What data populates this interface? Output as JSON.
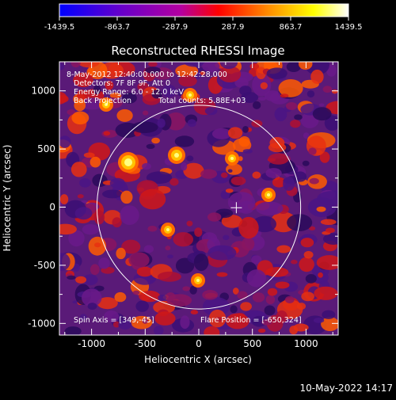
{
  "colorbar": {
    "tick_labels": [
      "-1439.5",
      "-863.7",
      "-287.9",
      "287.9",
      "863.7",
      "1439.5"
    ],
    "range": [
      -1439.5,
      1439.5
    ],
    "colors": [
      "#0000ff",
      "#6a00c8",
      "#b400a0",
      "#ff0000",
      "#ff8a00",
      "#ffff00",
      "#ffffff"
    ]
  },
  "chart_data": {
    "type": "heatmap",
    "title": "Reconstructed RHESSI Image",
    "xlabel": "Heliocentric X (arcsec)",
    "ylabel": "Heliocentric Y (arcsec)",
    "xlim": [
      -1300,
      1300
    ],
    "ylim": [
      -1100,
      1250
    ],
    "x_ticks": [
      "-1000",
      "-500",
      "0",
      "500",
      "1000"
    ],
    "y_ticks": [
      "-1000",
      "-500",
      "0",
      "500",
      "1000"
    ],
    "x_tick_values": [
      -1000,
      -500,
      0,
      500,
      1000
    ],
    "y_tick_values": [
      -1000,
      -500,
      0,
      500,
      1000
    ],
    "solar_disk": {
      "center": [
        0,
        0
      ],
      "radius_arcsec": 950
    },
    "flare_marker": [
      350,
      -5
    ],
    "info_lines": [
      "8-May-2012 12:40:00.000 to 12:42:28.000",
      "Detectors: 7F 8F 9F, Att 0",
      "Energy Range: 6.0 - 12.0 keV",
      "Back Projection",
      "Total counts: 5.88E+03"
    ],
    "spin_axis": "Spin Axis = [349,-45]",
    "flare_position": "Flare Position = [-650,324]"
  },
  "timestamp": "10-May-2022 14:17"
}
